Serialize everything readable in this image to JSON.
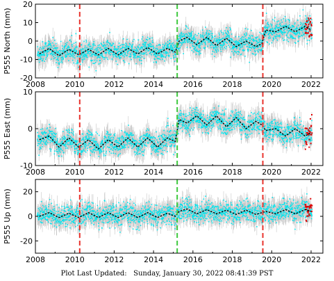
{
  "footer": {
    "label": "Plot Last Updated:",
    "timestamp": "Sunday, January 30, 2022 08:41:39 PST"
  },
  "colors": {
    "daily_points": "#00e5ee",
    "error_bars": "#b4b4b4",
    "recent_points": "#e00000",
    "model_curve": "#000000",
    "equipment_change_line": "#e8322c",
    "event_line": "#3cc83c"
  },
  "chart_data": [
    {
      "type": "scatter",
      "station": "P555",
      "component": "North",
      "ylabel": "P555 North (mm)",
      "xlim": [
        2008,
        2022.6
      ],
      "ylim": [
        -20,
        20
      ],
      "xticks": [
        2008,
        2010,
        2012,
        2014,
        2016,
        2018,
        2020,
        2022
      ],
      "yticks": [
        -20,
        -10,
        0,
        10,
        20
      ],
      "vertical_markers": [
        {
          "x": 2010.25,
          "color": "red",
          "style": "dashed"
        },
        {
          "x": 2015.2,
          "color": "green",
          "style": "dashed"
        },
        {
          "x": 2019.55,
          "color": "red",
          "style": "dashed"
        }
      ],
      "model_series": {
        "name": "model",
        "x": [
          2008.2,
          2008.7,
          2009.2,
          2009.7,
          2010.2,
          2010.7,
          2011.2,
          2011.7,
          2012.2,
          2012.7,
          2013.2,
          2013.7,
          2014.2,
          2014.7,
          2015.1,
          2015.3,
          2015.7,
          2016.2,
          2016.7,
          2017.2,
          2017.7,
          2018.2,
          2018.7,
          2019.2,
          2019.5,
          2019.7,
          2020.2,
          2020.7,
          2021.2,
          2021.7,
          2022.0
        ],
        "y": [
          -7,
          -4,
          -8,
          -4.5,
          -7.5,
          -4.5,
          -7.5,
          -4,
          -7.5,
          -4,
          -7,
          -3.5,
          -7,
          -4,
          -6,
          0,
          2,
          -2,
          2,
          -2.5,
          1.5,
          -3,
          0,
          -3,
          -1.5,
          6,
          5,
          8,
          5,
          8,
          6
        ]
      },
      "scatter_note": "dense daily GPS positions with error bars"
    },
    {
      "type": "scatter",
      "station": "P555",
      "component": "East",
      "ylabel": "P555 East (mm)",
      "xlim": [
        2008,
        2022.6
      ],
      "ylim": [
        -10,
        10
      ],
      "xticks": [
        2008,
        2010,
        2012,
        2014,
        2016,
        2018,
        2020,
        2022
      ],
      "yticks": [
        -10,
        0,
        10
      ],
      "vertical_markers": [
        {
          "x": 2010.25,
          "color": "red",
          "style": "dashed"
        },
        {
          "x": 2015.2,
          "color": "green",
          "style": "dashed"
        },
        {
          "x": 2019.55,
          "color": "red",
          "style": "dashed"
        }
      ],
      "model_series": {
        "name": "model",
        "x": [
          2008.2,
          2008.7,
          2009.2,
          2009.7,
          2010.2,
          2010.7,
          2011.2,
          2011.7,
          2012.2,
          2012.7,
          2013.2,
          2013.7,
          2014.2,
          2014.7,
          2015.1,
          2015.3,
          2015.7,
          2016.2,
          2016.7,
          2017.2,
          2017.7,
          2018.2,
          2018.7,
          2019.2,
          2019.5,
          2019.7,
          2020.2,
          2020.7,
          2021.2,
          2021.7,
          2022.0
        ],
        "y": [
          -3,
          -2,
          -5,
          -2.5,
          -5,
          -3,
          -5.5,
          -3,
          -5,
          -2.5,
          -5,
          -2.5,
          -5,
          -2.5,
          -3.5,
          2.5,
          1.5,
          3.5,
          1,
          3.5,
          0.5,
          3,
          0,
          2,
          1,
          -0.5,
          0,
          -2,
          0,
          -2,
          -1
        ]
      },
      "scatter_note": "dense daily GPS positions with error bars"
    },
    {
      "type": "scatter",
      "station": "P555",
      "component": "Up",
      "ylabel": "P555 Up (mm)",
      "xlim": [
        2008,
        2022.6
      ],
      "ylim": [
        -30,
        30
      ],
      "xticks": [
        2008,
        2010,
        2012,
        2014,
        2016,
        2018,
        2020,
        2022
      ],
      "yticks": [
        -20,
        0,
        20
      ],
      "vertical_markers": [
        {
          "x": 2010.25,
          "color": "red",
          "style": "dashed"
        },
        {
          "x": 2015.2,
          "color": "green",
          "style": "dashed"
        },
        {
          "x": 2019.55,
          "color": "red",
          "style": "dashed"
        }
      ],
      "model_series": {
        "name": "model",
        "x": [
          2008.2,
          2008.7,
          2009.2,
          2009.7,
          2010.2,
          2010.7,
          2011.2,
          2011.7,
          2012.2,
          2012.7,
          2013.2,
          2013.7,
          2014.2,
          2014.7,
          2015.1,
          2015.3,
          2015.7,
          2016.2,
          2016.7,
          2017.2,
          2017.7,
          2018.2,
          2018.7,
          2019.2,
          2019.5,
          2019.7,
          2020.2,
          2020.7,
          2021.2,
          2021.7,
          2022.0
        ],
        "y": [
          0,
          3,
          -1,
          2.5,
          -1,
          3,
          -1,
          3,
          -1,
          3,
          -1,
          3,
          -1,
          2.5,
          0,
          4,
          6,
          2,
          5.5,
          2,
          5,
          1.5,
          5,
          1.5,
          3,
          4,
          2,
          5.5,
          2,
          5.5,
          4
        ]
      },
      "scatter_note": "dense daily GPS positions with error bars"
    }
  ]
}
